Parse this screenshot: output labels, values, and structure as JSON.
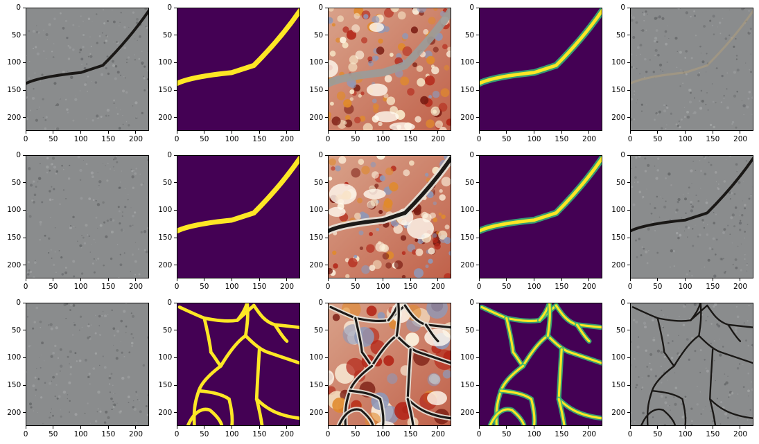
{
  "figure": {
    "rows": 3,
    "cols": 5,
    "x_ticks": [
      "0",
      "50",
      "100",
      "150",
      "200"
    ],
    "y_ticks": [
      "0",
      "50",
      "100",
      "150",
      "200"
    ],
    "x_tick_values": [
      0,
      50,
      100,
      150,
      200
    ],
    "y_tick_values": [
      0,
      50,
      100,
      150,
      200
    ],
    "axis_extent": [
      0,
      224
    ]
  },
  "panels": [
    {
      "row": 0,
      "col": 0,
      "kind": "photo",
      "crack": "curve"
    },
    {
      "row": 0,
      "col": 1,
      "kind": "mask",
      "crack": "curve"
    },
    {
      "row": 0,
      "col": 2,
      "kind": "heat",
      "crack": "curve-light"
    },
    {
      "row": 0,
      "col": 3,
      "kind": "pred",
      "crack": "curve"
    },
    {
      "row": 0,
      "col": 4,
      "kind": "photo",
      "crack": "curve-faint"
    },
    {
      "row": 1,
      "col": 0,
      "kind": "photo",
      "crack": "none"
    },
    {
      "row": 1,
      "col": 1,
      "kind": "mask",
      "crack": "curve"
    },
    {
      "row": 1,
      "col": 2,
      "kind": "heat",
      "crack": "curve-dark"
    },
    {
      "row": 1,
      "col": 3,
      "kind": "pred",
      "crack": "curve"
    },
    {
      "row": 1,
      "col": 4,
      "kind": "photo",
      "crack": "curve-dark"
    },
    {
      "row": 2,
      "col": 0,
      "kind": "photo",
      "crack": "none"
    },
    {
      "row": 2,
      "col": 1,
      "kind": "mask",
      "crack": "network"
    },
    {
      "row": 2,
      "col": 2,
      "kind": "heat",
      "crack": "network"
    },
    {
      "row": 2,
      "col": 3,
      "kind": "pred",
      "crack": "network"
    },
    {
      "row": 2,
      "col": 4,
      "kind": "photo",
      "crack": "network"
    }
  ],
  "colors": {
    "mask_bg": "#440154",
    "mask_fg": "#fde725",
    "pred_edge": "#35b779",
    "concrete": "#8a8c8d",
    "crack": "#1a1816"
  }
}
